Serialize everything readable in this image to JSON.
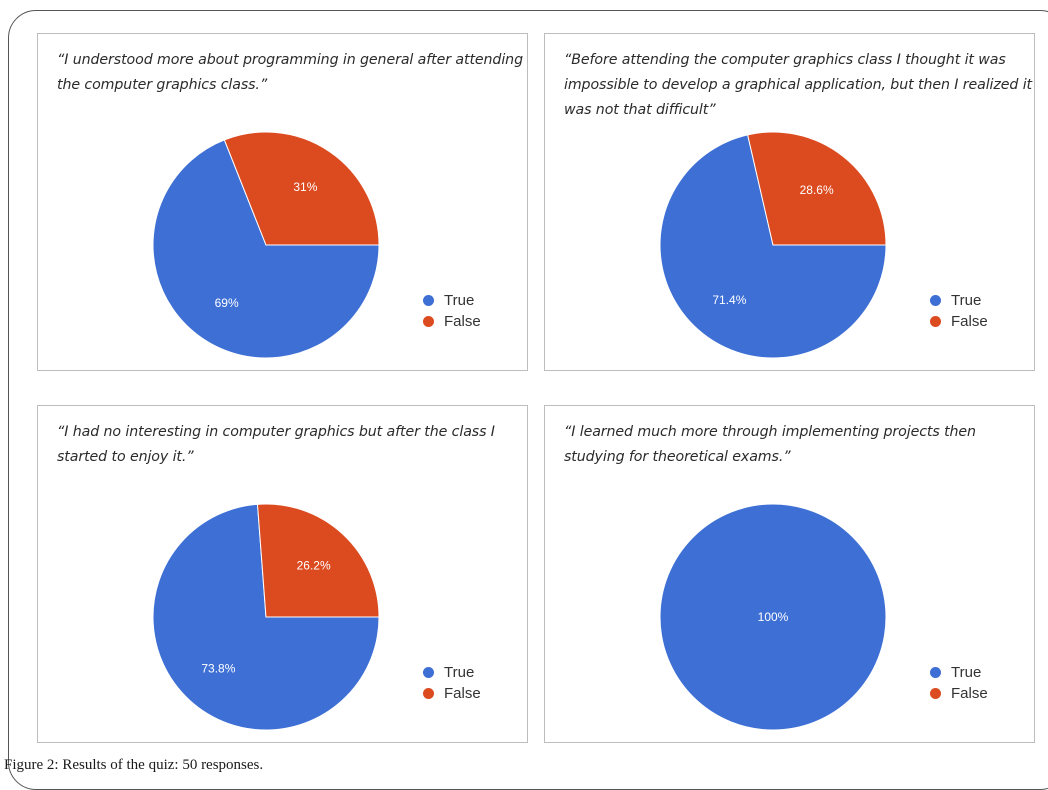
{
  "figure_caption": "Figure 2: Results of the quiz: 50 responses.",
  "colors": {
    "true": "#3d6fd4",
    "false": "#dc4a1f"
  },
  "chart_data": [
    {
      "type": "pie",
      "title": "“I understood more about programming in general after attending the computer graphics class.”",
      "legend": [
        "True",
        "False"
      ],
      "legend_position": "right-bottom",
      "slices": [
        {
          "name": "True",
          "value": 69,
          "label": "69%"
        },
        {
          "name": "False",
          "value": 31,
          "label": "31%"
        }
      ]
    },
    {
      "type": "pie",
      "title": "“Before attending the computer graphics class I thought it was impossible to develop a graphical application, but then I realized it was not that difficult”",
      "legend": [
        "True",
        "False"
      ],
      "legend_position": "right-bottom",
      "slices": [
        {
          "name": "True",
          "value": 71.4,
          "label": "71.4%"
        },
        {
          "name": "False",
          "value": 28.6,
          "label": "28.6%"
        }
      ]
    },
    {
      "type": "pie",
      "title": "“I had no interesting in computer graphics but after the class I started to enjoy it.”",
      "legend": [
        "True",
        "False"
      ],
      "legend_position": "right-bottom",
      "slices": [
        {
          "name": "True",
          "value": 73.8,
          "label": "73.8%"
        },
        {
          "name": "False",
          "value": 26.2,
          "label": "26.2%"
        }
      ]
    },
    {
      "type": "pie",
      "title": "“I learned much more through implementing projects then studying for theoretical exams.”",
      "legend": [
        "True",
        "False"
      ],
      "legend_position": "right-bottom",
      "slices": [
        {
          "name": "True",
          "value": 100,
          "label": "100%"
        },
        {
          "name": "False",
          "value": 0,
          "label": ""
        }
      ]
    }
  ]
}
